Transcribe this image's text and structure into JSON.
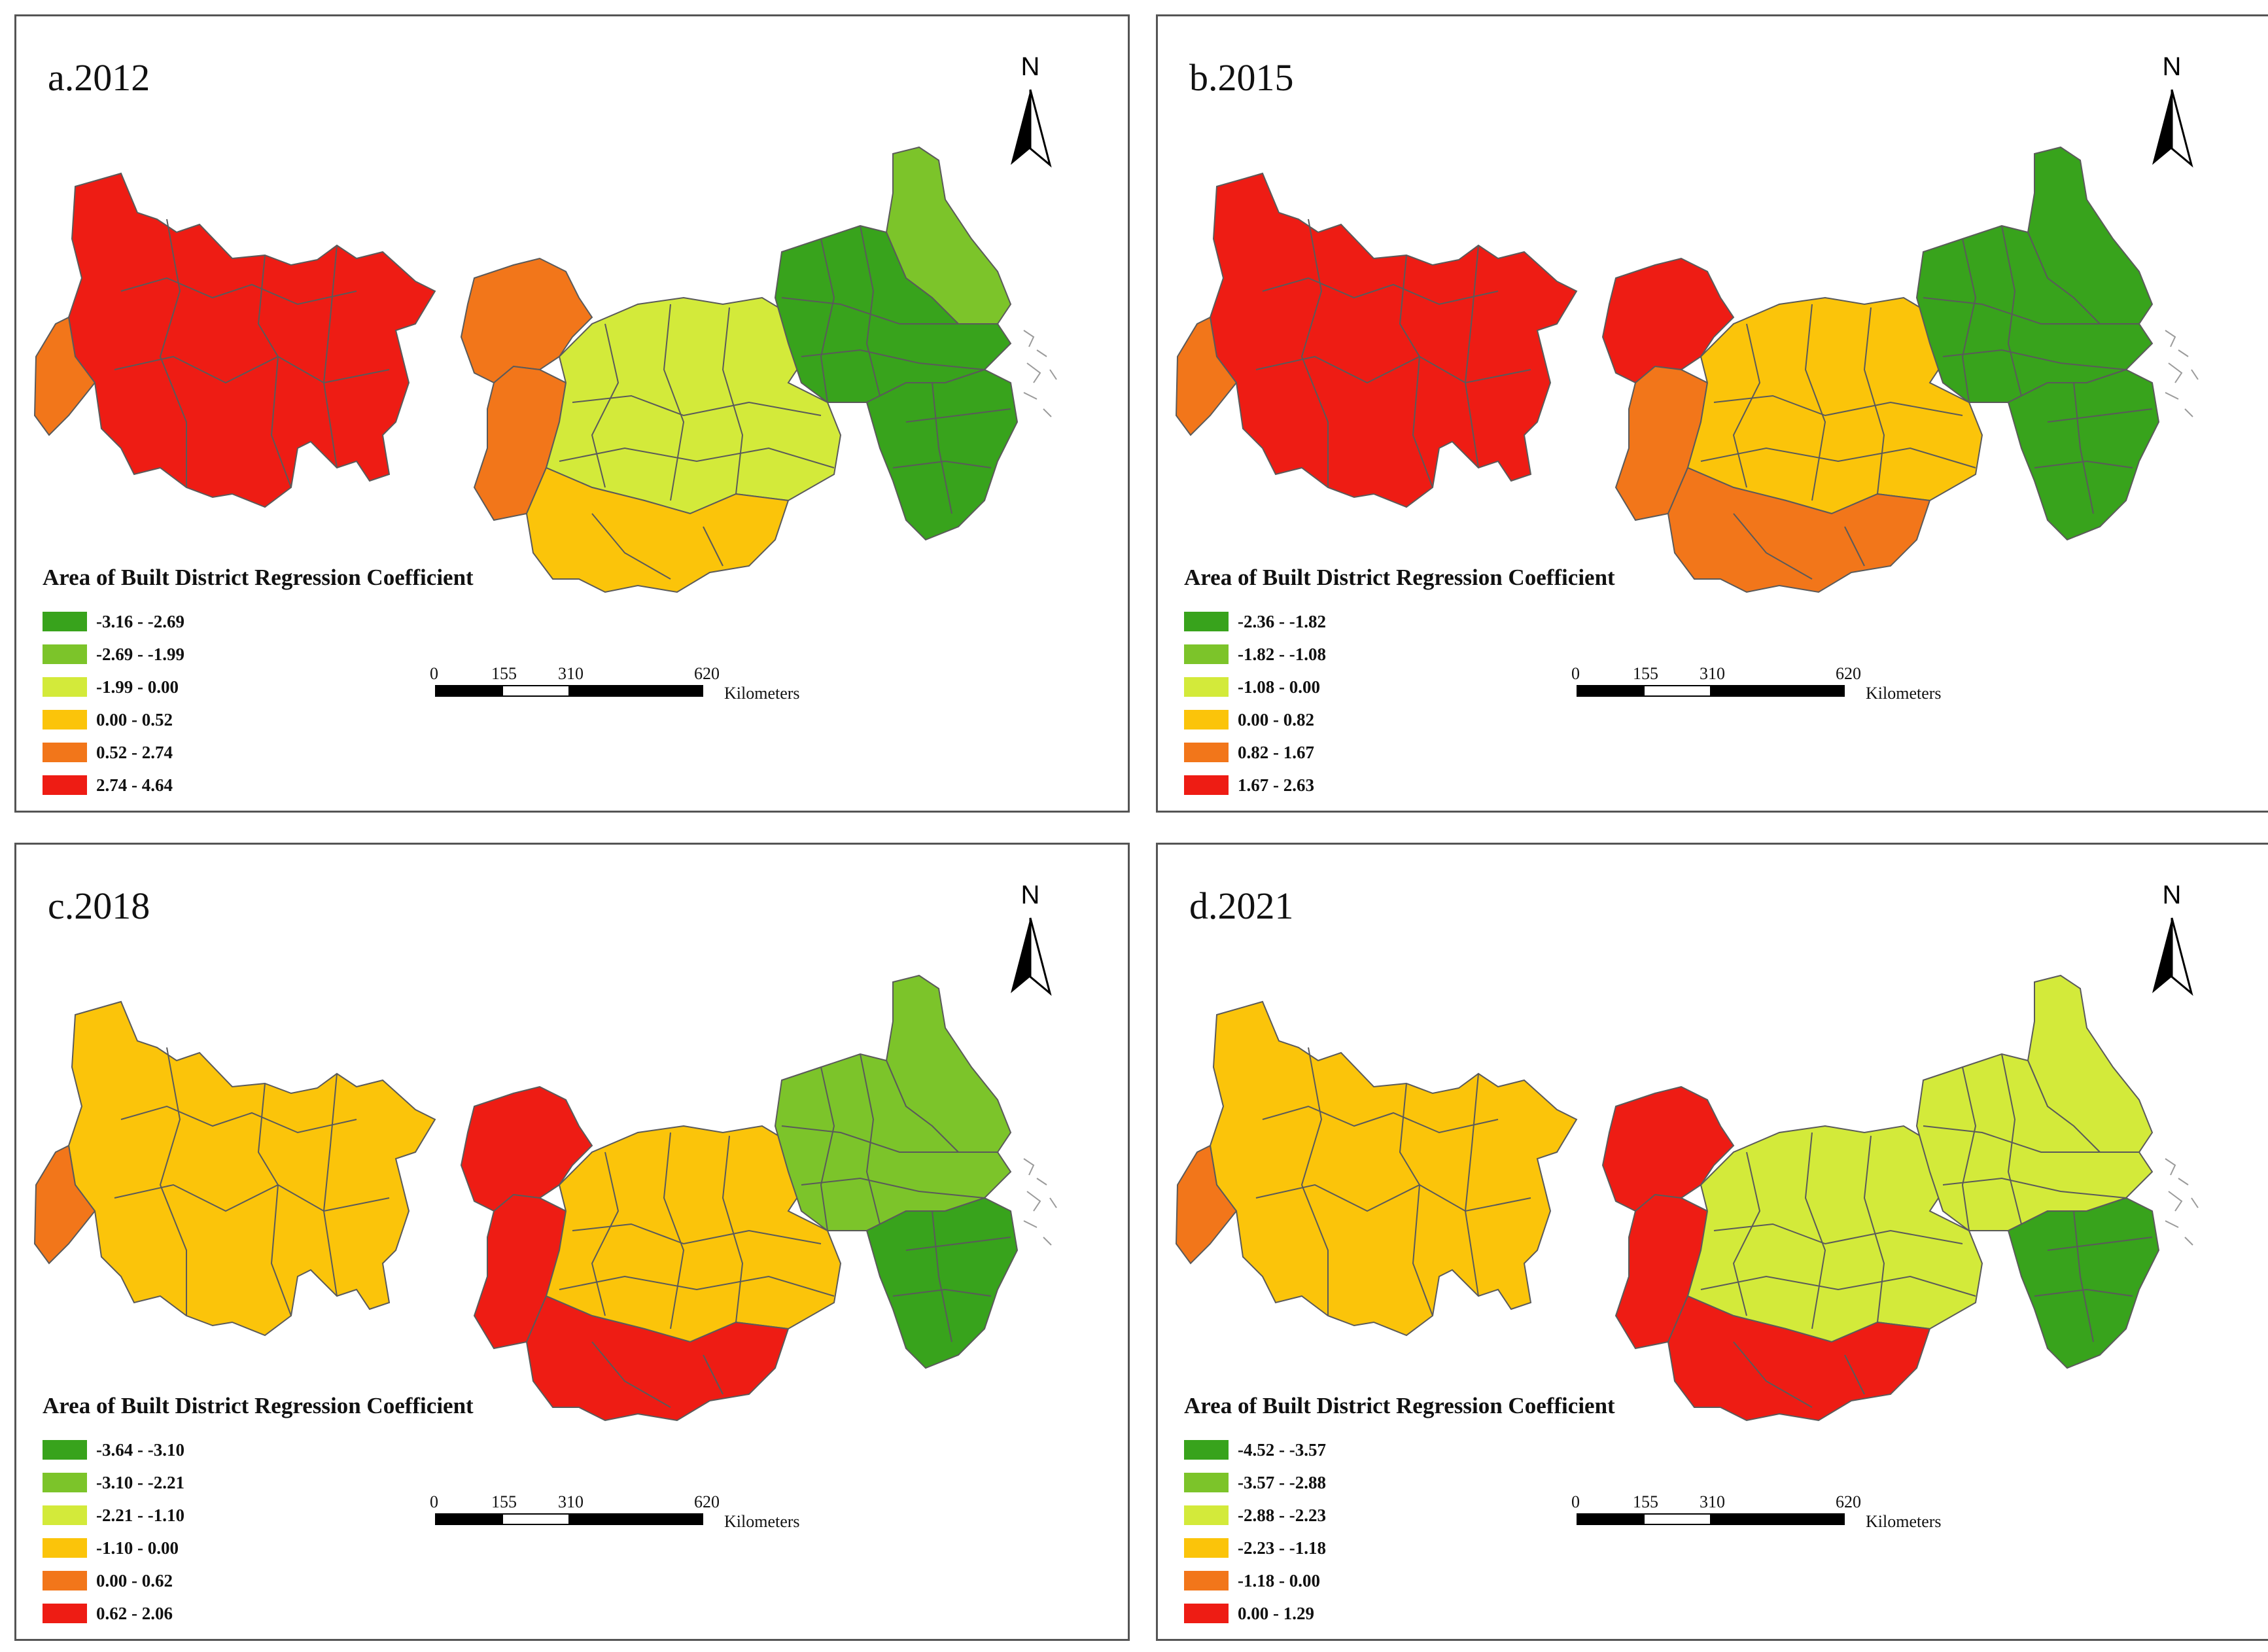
{
  "colors": {
    "c1": "#38a31c",
    "c2": "#7cc42a",
    "c3": "#d3ea3a",
    "c4": "#fbc40a",
    "c5": "#f2761a",
    "c6": "#ee1c14"
  },
  "legend_title": "Area of Built District Regression Coefficient",
  "scale_bar": {
    "ticks": [
      "0",
      "155",
      "310",
      "620"
    ],
    "unit": "Kilometers"
  },
  "north_label": "N",
  "panels": [
    {
      "title": "a.2012",
      "legend": [
        "-3.16 - -2.69",
        "-2.69 - -1.99",
        "-1.99 - 0.00",
        "0.00 - 0.52",
        "0.52 - 2.74",
        "2.74 - 4.64"
      ],
      "regions": {
        "west_main": "c6",
        "west_tip": "c5",
        "mid_north": "c5",
        "mid_west": "c5",
        "mid_center": "c3",
        "mid_south": "c4",
        "east_north": "c2",
        "east_main": "c1",
        "east_south": "c1"
      }
    },
    {
      "title": "b.2015",
      "legend": [
        "-2.36 - -1.82",
        "-1.82 - -1.08",
        "-1.08 - 0.00",
        "0.00 - 0.82",
        "0.82 - 1.67",
        "1.67 - 2.63"
      ],
      "regions": {
        "west_main": "c6",
        "west_tip": "c5",
        "mid_north": "c6",
        "mid_west": "c5",
        "mid_center": "c4",
        "mid_south": "c5",
        "east_north": "c1",
        "east_main": "c1",
        "east_south": "c1"
      }
    },
    {
      "title": "c.2018",
      "legend": [
        "-3.64 - -3.10",
        "-3.10 - -2.21",
        "-2.21 - -1.10",
        "-1.10 - 0.00",
        "0.00 - 0.62",
        "0.62 - 2.06"
      ],
      "regions": {
        "west_main": "c4",
        "west_tip": "c5",
        "mid_north": "c6",
        "mid_west": "c6",
        "mid_center": "c4",
        "mid_south": "c6",
        "east_north": "c2",
        "east_main": "c2",
        "east_south": "c1"
      }
    },
    {
      "title": "d.2021",
      "legend": [
        "-4.52 - -3.57",
        "-3.57 - -2.88",
        "-2.88 - -2.23",
        "-2.23 - -1.18",
        "-1.18 - 0.00",
        "0.00 - 1.29"
      ],
      "regions": {
        "west_main": "c4",
        "west_tip": "c5",
        "mid_north": "c6",
        "mid_west": "c6",
        "mid_center": "c3",
        "mid_south": "c6",
        "east_north": "c3",
        "east_main": "c3",
        "east_south": "c1"
      }
    }
  ]
}
